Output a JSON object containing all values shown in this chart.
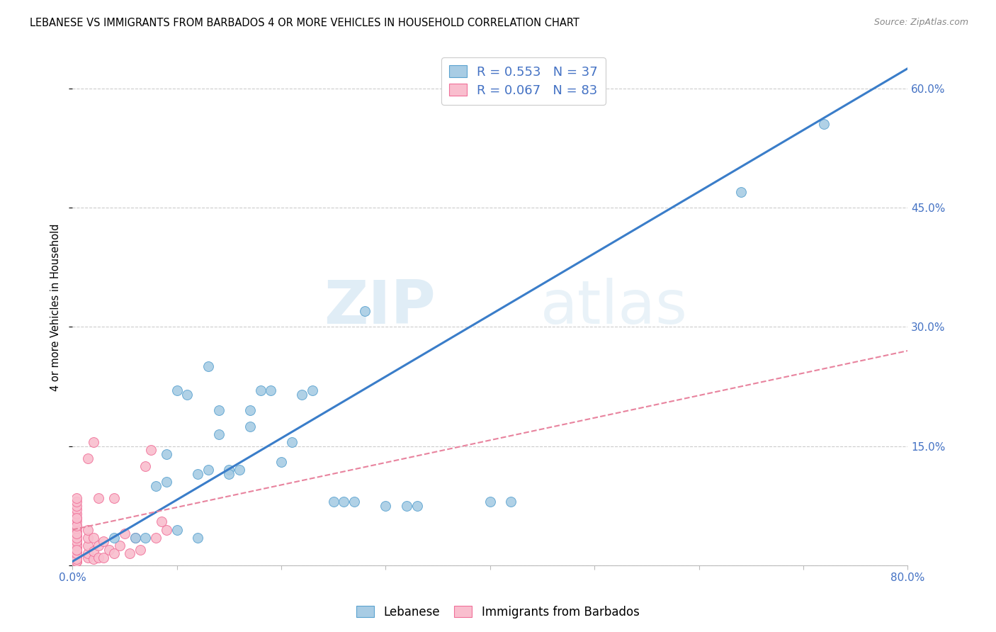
{
  "title": "LEBANESE VS IMMIGRANTS FROM BARBADOS 4 OR MORE VEHICLES IN HOUSEHOLD CORRELATION CHART",
  "source": "Source: ZipAtlas.com",
  "ylabel": "4 or more Vehicles in Household",
  "xlim": [
    0.0,
    0.8
  ],
  "ylim": [
    0.0,
    0.65
  ],
  "xticks": [
    0.0,
    0.1,
    0.2,
    0.3,
    0.4,
    0.5,
    0.6,
    0.7,
    0.8
  ],
  "xticklabels": [
    "0.0%",
    "",
    "",
    "",
    "",
    "",
    "",
    "",
    "80.0%"
  ],
  "yticks_right": [
    0.0,
    0.15,
    0.3,
    0.45,
    0.6
  ],
  "yticklabels_right": [
    "",
    "15.0%",
    "30.0%",
    "45.0%",
    "60.0%"
  ],
  "legend_label_blue": "Lebanese",
  "legend_label_pink": "Immigrants from Barbados",
  "blue_color": "#a8cce4",
  "pink_color": "#f9bece",
  "blue_edge_color": "#5ba3d0",
  "pink_edge_color": "#f07099",
  "blue_line_color": "#3a7dc9",
  "pink_line_color": "#e8839e",
  "watermark_zip": "ZIP",
  "watermark_atlas": "atlas",
  "blue_line_x0": 0.0,
  "blue_line_y0": 0.005,
  "blue_line_x1": 0.8,
  "blue_line_y1": 0.625,
  "pink_line_x0": 0.0,
  "pink_line_x1": 0.8,
  "pink_line_y0": 0.045,
  "pink_line_y1": 0.27,
  "blue_scatter_x": [
    0.04,
    0.06,
    0.07,
    0.08,
    0.09,
    0.09,
    0.1,
    0.1,
    0.11,
    0.12,
    0.12,
    0.13,
    0.13,
    0.14,
    0.14,
    0.15,
    0.15,
    0.16,
    0.17,
    0.17,
    0.18,
    0.19,
    0.2,
    0.21,
    0.22,
    0.23,
    0.25,
    0.26,
    0.27,
    0.28,
    0.3,
    0.32,
    0.33,
    0.4,
    0.42,
    0.64,
    0.72
  ],
  "blue_scatter_y": [
    0.035,
    0.035,
    0.035,
    0.1,
    0.105,
    0.14,
    0.045,
    0.22,
    0.215,
    0.035,
    0.115,
    0.12,
    0.25,
    0.165,
    0.195,
    0.12,
    0.115,
    0.12,
    0.175,
    0.195,
    0.22,
    0.22,
    0.13,
    0.155,
    0.215,
    0.22,
    0.08,
    0.08,
    0.08,
    0.32,
    0.075,
    0.075,
    0.075,
    0.08,
    0.08,
    0.47,
    0.555
  ],
  "pink_scatter_x": [
    0.004,
    0.004,
    0.004,
    0.004,
    0.004,
    0.004,
    0.004,
    0.004,
    0.004,
    0.004,
    0.004,
    0.004,
    0.004,
    0.004,
    0.004,
    0.004,
    0.004,
    0.004,
    0.004,
    0.004,
    0.004,
    0.004,
    0.004,
    0.004,
    0.004,
    0.004,
    0.004,
    0.004,
    0.004,
    0.004,
    0.004,
    0.004,
    0.004,
    0.004,
    0.004,
    0.004,
    0.004,
    0.004,
    0.004,
    0.004,
    0.004,
    0.004,
    0.004,
    0.004,
    0.004,
    0.004,
    0.004,
    0.004,
    0.004,
    0.004,
    0.004,
    0.004,
    0.004,
    0.004,
    0.004,
    0.015,
    0.015,
    0.015,
    0.015,
    0.015,
    0.015,
    0.02,
    0.02,
    0.02,
    0.02,
    0.025,
    0.025,
    0.025,
    0.03,
    0.03,
    0.035,
    0.04,
    0.04,
    0.045,
    0.05,
    0.055,
    0.06,
    0.065,
    0.07,
    0.075,
    0.08,
    0.085,
    0.09
  ],
  "pink_scatter_y": [
    0.005,
    0.005,
    0.005,
    0.008,
    0.008,
    0.01,
    0.01,
    0.012,
    0.012,
    0.015,
    0.015,
    0.017,
    0.017,
    0.02,
    0.02,
    0.022,
    0.022,
    0.025,
    0.025,
    0.028,
    0.03,
    0.032,
    0.035,
    0.038,
    0.04,
    0.043,
    0.046,
    0.05,
    0.055,
    0.06,
    0.065,
    0.07,
    0.075,
    0.08,
    0.085,
    0.005,
    0.008,
    0.012,
    0.015,
    0.02,
    0.025,
    0.005,
    0.01,
    0.015,
    0.02,
    0.008,
    0.015,
    0.02,
    0.025,
    0.03,
    0.035,
    0.04,
    0.05,
    0.06,
    0.02,
    0.01,
    0.015,
    0.025,
    0.035,
    0.045,
    0.135,
    0.008,
    0.018,
    0.035,
    0.155,
    0.01,
    0.025,
    0.085,
    0.01,
    0.03,
    0.02,
    0.015,
    0.085,
    0.025,
    0.04,
    0.015,
    0.035,
    0.02,
    0.125,
    0.145,
    0.035,
    0.055,
    0.045
  ]
}
